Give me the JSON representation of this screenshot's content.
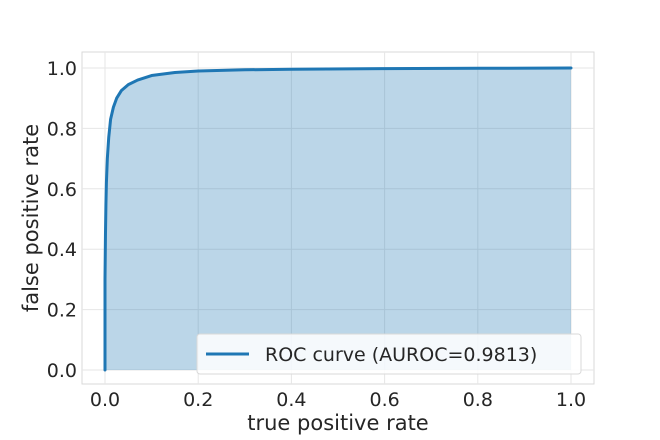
{
  "chart_data": {
    "type": "area",
    "title": "",
    "xlabel": "true positive rate",
    "ylabel": "false positive rate",
    "xlim": [
      0,
      1
    ],
    "ylim": [
      0,
      1
    ],
    "x_ticks": [
      "0.0",
      "0.2",
      "0.4",
      "0.6",
      "0.8",
      "1.0"
    ],
    "y_ticks": [
      "0.0",
      "0.2",
      "0.4",
      "0.6",
      "0.8",
      "1.0"
    ],
    "grid": true,
    "legend_position": "bottom-right",
    "series": [
      {
        "name": "ROC curve (AUROC=0.9813)",
        "color": "#1f77b4",
        "fill_color": "#1f77b4",
        "x": [
          0.0,
          0.0,
          0.001,
          0.002,
          0.003,
          0.005,
          0.008,
          0.012,
          0.018,
          0.025,
          0.035,
          0.05,
          0.07,
          0.1,
          0.15,
          0.2,
          0.3,
          0.4,
          0.6,
          0.8,
          1.0
        ],
        "y": [
          0.0,
          0.3,
          0.45,
          0.55,
          0.62,
          0.7,
          0.77,
          0.83,
          0.87,
          0.9,
          0.925,
          0.945,
          0.96,
          0.975,
          0.985,
          0.99,
          0.994,
          0.996,
          0.998,
          0.999,
          1.0
        ]
      }
    ]
  }
}
